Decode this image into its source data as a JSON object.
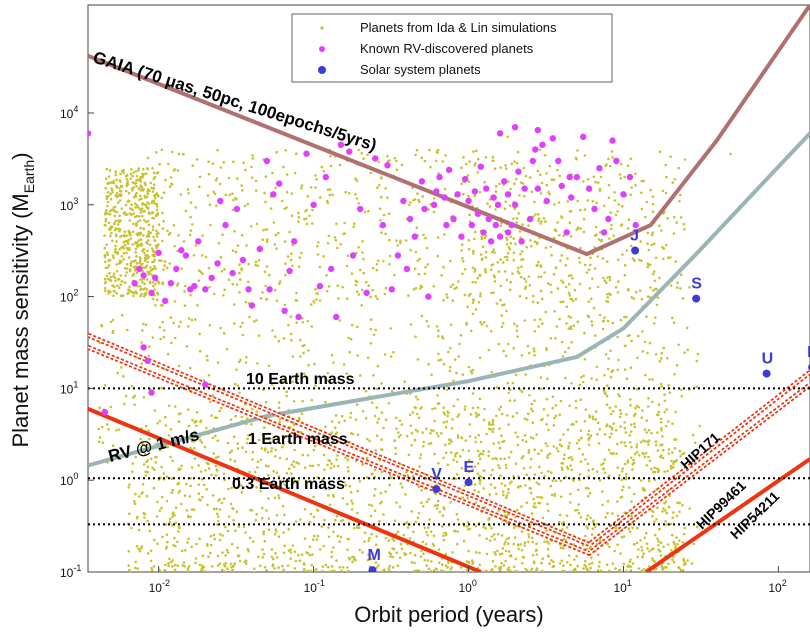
{
  "chart_data": {
    "type": "scatter",
    "xscale": "log",
    "yscale": "log",
    "xlim": [
      0.0035,
      160
    ],
    "ylim": [
      0.1,
      150000
    ],
    "xlabel": "Orbit period (years)",
    "ylabel_main": "Planet mass sensitivity (M",
    "ylabel_sub": "Earth",
    "ylabel_end": ")",
    "x_ticks": [
      {
        "base": "10",
        "exp": "-2",
        "value": 0.01
      },
      {
        "base": "10",
        "exp": "-1",
        "value": 0.1
      },
      {
        "base": "10",
        "exp": "0",
        "value": 1
      },
      {
        "base": "10",
        "exp": "1",
        "value": 10
      },
      {
        "base": "10",
        "exp": "2",
        "value": 100
      }
    ],
    "y_ticks": [
      {
        "base": "10",
        "exp": "-1",
        "value": 0.1
      },
      {
        "base": "10",
        "exp": "0",
        "value": 1
      },
      {
        "base": "10",
        "exp": "1",
        "value": 10
      },
      {
        "base": "10",
        "exp": "2",
        "value": 100
      },
      {
        "base": "10",
        "exp": "3",
        "value": 1000
      },
      {
        "base": "10",
        "exp": "4",
        "value": 10000
      }
    ],
    "legend": {
      "position": "top-center",
      "entries": [
        {
          "label": "Planets from Ida & Lin simulations",
          "color": "#c9c230",
          "marker": "dot-small"
        },
        {
          "label": "Known RV-discovered planets",
          "color": "#e040fb",
          "marker": "dot"
        },
        {
          "label": "Solar system planets",
          "color": "#3b3bd6",
          "marker": "dot-large"
        }
      ]
    },
    "horizontal_lines": [
      {
        "label": "10 Earth mass",
        "y": 10
      },
      {
        "label": "1 Earth mass",
        "y": 1.05
      },
      {
        "label": "0.3 Earth mass",
        "y": 0.33
      }
    ],
    "curves": [
      {
        "label": "GAIA (70 μas, 50pc, 100epochs/5yrs)",
        "color": "#b07070",
        "style": "solid",
        "points": [
          [
            0.0035,
            42000
          ],
          [
            5.8,
            290
          ],
          [
            15,
            600
          ],
          [
            40,
            5000
          ],
          [
            160,
            150000
          ]
        ]
      },
      {
        "label": "",
        "color": "#9bb5b5",
        "style": "solid",
        "points": [
          [
            0.0035,
            1.45
          ],
          [
            0.05,
            5
          ],
          [
            1,
            12
          ],
          [
            5,
            22
          ],
          [
            10,
            45
          ],
          [
            30,
            300
          ],
          [
            100,
            2600
          ],
          [
            160,
            6000
          ]
        ]
      },
      {
        "label": "RV @ 1 m/s",
        "color": "#ee3311",
        "style": "solid",
        "points": [
          [
            0.0035,
            6
          ],
          [
            1.2,
            0.1
          ]
        ]
      },
      {
        "label": "HIP54211",
        "color": "#ee3311",
        "style": "solid",
        "points": [
          [
            14,
            0.1
          ],
          [
            160,
            1.7
          ]
        ]
      },
      {
        "label": "HIP171",
        "color": "#ee3311",
        "style": "dotted",
        "points": [
          [
            0.0035,
            38
          ],
          [
            6,
            0.2
          ],
          [
            160,
            15
          ]
        ]
      },
      {
        "label": "HIP99461",
        "color": "#ee3311",
        "style": "dotted",
        "points": [
          [
            0.0035,
            28
          ],
          [
            6,
            0.16
          ],
          [
            160,
            11
          ]
        ]
      }
    ],
    "solar_system": [
      {
        "label": "M",
        "x": 0.24,
        "y": 0.105
      },
      {
        "label": "V",
        "x": 0.62,
        "y": 0.8
      },
      {
        "label": "E",
        "x": 1.0,
        "y": 0.95
      },
      {
        "label": "J",
        "x": 11.9,
        "y": 318
      },
      {
        "label": "S",
        "x": 29.5,
        "y": 95
      },
      {
        "label": "U",
        "x": 84,
        "y": 14.5
      },
      {
        "label": "N",
        "x": 165,
        "y": 17
      }
    ],
    "known_rv_points": [
      [
        0.0035,
        6000
      ],
      [
        0.0045,
        5.5
      ],
      [
        0.008,
        28
      ],
      [
        0.0085,
        20
      ],
      [
        0.007,
        140
      ],
      [
        0.0075,
        200
      ],
      [
        0.008,
        170
      ],
      [
        0.009,
        110
      ],
      [
        0.0095,
        160
      ],
      [
        0.01,
        300
      ],
      [
        0.011,
        90
      ],
      [
        0.012,
        140
      ],
      [
        0.013,
        200
      ],
      [
        0.014,
        320
      ],
      [
        0.015,
        280
      ],
      [
        0.016,
        120
      ],
      [
        0.017,
        130
      ],
      [
        0.018,
        400
      ],
      [
        0.02,
        120
      ],
      [
        0.022,
        160
      ],
      [
        0.024,
        230
      ],
      [
        0.025,
        1100
      ],
      [
        0.027,
        600
      ],
      [
        0.03,
        180
      ],
      [
        0.032,
        900
      ],
      [
        0.035,
        250
      ],
      [
        0.038,
        120
      ],
      [
        0.04,
        80
      ],
      [
        0.045,
        330
      ],
      [
        0.05,
        3000
      ],
      [
        0.052,
        120
      ],
      [
        0.055,
        1300
      ],
      [
        0.06,
        1700
      ],
      [
        0.065,
        70
      ],
      [
        0.07,
        190
      ],
      [
        0.075,
        400
      ],
      [
        0.08,
        60
      ],
      [
        0.09,
        3600
      ],
      [
        0.1,
        1000
      ],
      [
        0.11,
        130
      ],
      [
        0.12,
        2000
      ],
      [
        0.13,
        200
      ],
      [
        0.14,
        60
      ],
      [
        0.15,
        4500
      ],
      [
        0.17,
        3800
      ],
      [
        0.18,
        280
      ],
      [
        0.2,
        900
      ],
      [
        0.22,
        110
      ],
      [
        0.25,
        3200
      ],
      [
        0.28,
        600
      ],
      [
        0.3,
        2700
      ],
      [
        0.32,
        120
      ],
      [
        0.35,
        280
      ],
      [
        0.38,
        1100
      ],
      [
        0.42,
        700
      ],
      [
        0.45,
        450
      ],
      [
        0.5,
        1800
      ],
      [
        0.52,
        900
      ],
      [
        0.55,
        100
      ],
      [
        0.6,
        1000
      ],
      [
        0.62,
        1400
      ],
      [
        0.65,
        2000
      ],
      [
        0.7,
        1200
      ],
      [
        0.72,
        600
      ],
      [
        0.75,
        2400
      ],
      [
        0.8,
        700
      ],
      [
        0.85,
        1300
      ],
      [
        0.9,
        450
      ],
      [
        0.95,
        1900
      ],
      [
        1.0,
        1100
      ],
      [
        1.05,
        600
      ],
      [
        1.1,
        1400
      ],
      [
        1.15,
        800
      ],
      [
        1.2,
        2600
      ],
      [
        1.25,
        500
      ],
      [
        1.3,
        1500
      ],
      [
        1.35,
        700
      ],
      [
        1.4,
        400
      ],
      [
        1.45,
        1200
      ],
      [
        1.5,
        600
      ],
      [
        1.55,
        1000
      ],
      [
        1.6,
        450
      ],
      [
        1.7,
        1800
      ],
      [
        1.8,
        1300
      ],
      [
        1.9,
        600
      ],
      [
        2.0,
        1000
      ],
      [
        2.1,
        2300
      ],
      [
        2.2,
        400
      ],
      [
        2.3,
        1500
      ],
      [
        2.5,
        700
      ],
      [
        2.6,
        3000
      ],
      [
        2.7,
        4000
      ],
      [
        2.8,
        1500
      ],
      [
        3.0,
        4500
      ],
      [
        3.2,
        1100
      ],
      [
        3.5,
        5300
      ],
      [
        3.8,
        3000
      ],
      [
        4.0,
        1600
      ],
      [
        4.3,
        500
      ],
      [
        4.6,
        1200
      ],
      [
        5.0,
        2000
      ],
      [
        5.5,
        5500
      ],
      [
        6.0,
        1500
      ],
      [
        6.5,
        900
      ],
      [
        7.0,
        2500
      ],
      [
        7.5,
        500
      ],
      [
        8.0,
        700
      ],
      [
        8.5,
        5000
      ],
      [
        9.0,
        3000
      ],
      [
        10,
        1300
      ],
      [
        11,
        2000
      ],
      [
        12,
        600
      ],
      [
        0.009,
        9
      ],
      [
        0.02,
        11
      ],
      [
        1.6,
        6000
      ],
      [
        2.0,
        7000
      ],
      [
        2.8,
        6500
      ],
      [
        4.5,
        2000
      ],
      [
        1.8,
        500
      ],
      [
        0.4,
        200
      ]
    ]
  }
}
